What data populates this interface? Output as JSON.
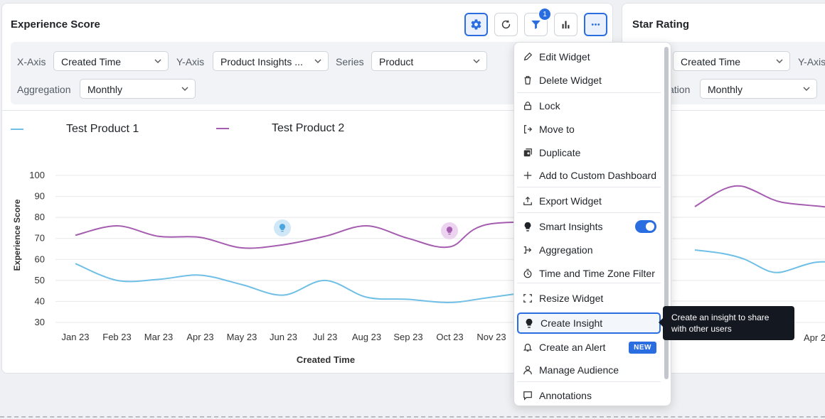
{
  "widgets": {
    "main": {
      "title": "Experience Score",
      "filter_badge": "1",
      "config": {
        "x_axis_label": "X-Axis",
        "x_axis_value": "Created Time",
        "y_axis_label": "Y-Axis",
        "y_axis_value": "Product Insights ...",
        "series_label": "Series",
        "series_value": "Product",
        "aggregation_label": "Aggregation",
        "aggregation_value": "Monthly"
      }
    },
    "right": {
      "title": "Star Rating",
      "config": {
        "x_axis_value": "Created Time",
        "y_axis_label": "Y-Axis",
        "aggregation_label_partial": "ation",
        "aggregation_value": "Monthly"
      },
      "x_tick_visible": "Apr 2"
    }
  },
  "chart_data": {
    "type": "line",
    "xlabel": "Created Time",
    "ylabel": "Experience Score",
    "ylim": [
      30,
      100
    ],
    "yticks": [
      100,
      90,
      80,
      70,
      60,
      50,
      40,
      30
    ],
    "categories": [
      "Jan 23",
      "Feb 23",
      "Mar 23",
      "Apr 23",
      "May 23",
      "Jun 23",
      "Jul 23",
      "Aug 23",
      "Sep 23",
      "Oct 23",
      "Nov 23"
    ],
    "series": [
      {
        "name": "Test Product 1",
        "color": "#6fbfe6",
        "values": [
          58,
          50,
          50.5,
          52.5,
          48,
          43,
          50,
          42,
          41,
          39.5,
          42
        ]
      },
      {
        "name": "Test Product 2",
        "color": "#a55db0",
        "values": [
          71.5,
          76,
          71,
          70.5,
          65.5,
          67,
          71,
          76,
          70,
          66,
          77
        ]
      }
    ],
    "insight_markers": [
      {
        "category": "Jun 23",
        "series": "Test Product 1"
      },
      {
        "category": "Oct 23",
        "series": "Test Product 2"
      }
    ],
    "grid": true,
    "legend_position": "top-left"
  },
  "menu": {
    "items": [
      {
        "label": "Edit Widget",
        "icon": "pencil-icon"
      },
      {
        "label": "Delete Widget",
        "icon": "trash-icon"
      },
      {
        "label": "Lock",
        "icon": "lock-icon"
      },
      {
        "label": "Move to",
        "icon": "move-to-icon"
      },
      {
        "label": "Duplicate",
        "icon": "duplicate-icon"
      },
      {
        "label": "Add to Custom Dashboard",
        "icon": "plus-icon"
      },
      {
        "label": "Export Widget",
        "icon": "export-icon"
      },
      {
        "label": "Smart Insights",
        "icon": "bulb-icon",
        "toggle": true
      },
      {
        "label": "Aggregation",
        "icon": "aggregation-icon"
      },
      {
        "label": "Time and Time Zone Filter",
        "icon": "clock-icon"
      },
      {
        "label": "Resize Widget",
        "icon": "resize-icon"
      },
      {
        "label": "Create Insight",
        "icon": "bulb-icon",
        "highlighted": true
      },
      {
        "label": "Create an Alert",
        "icon": "bell-icon",
        "badge": "NEW"
      },
      {
        "label": "Manage Audience",
        "icon": "user-icon"
      },
      {
        "label": "Annotations",
        "icon": "annotation-icon"
      }
    ]
  },
  "tooltip": {
    "text": "Create an insight to share with other users"
  },
  "colors": {
    "accent": "#2a6de0",
    "series1": "#6fbfe6",
    "series2": "#a55db0"
  }
}
